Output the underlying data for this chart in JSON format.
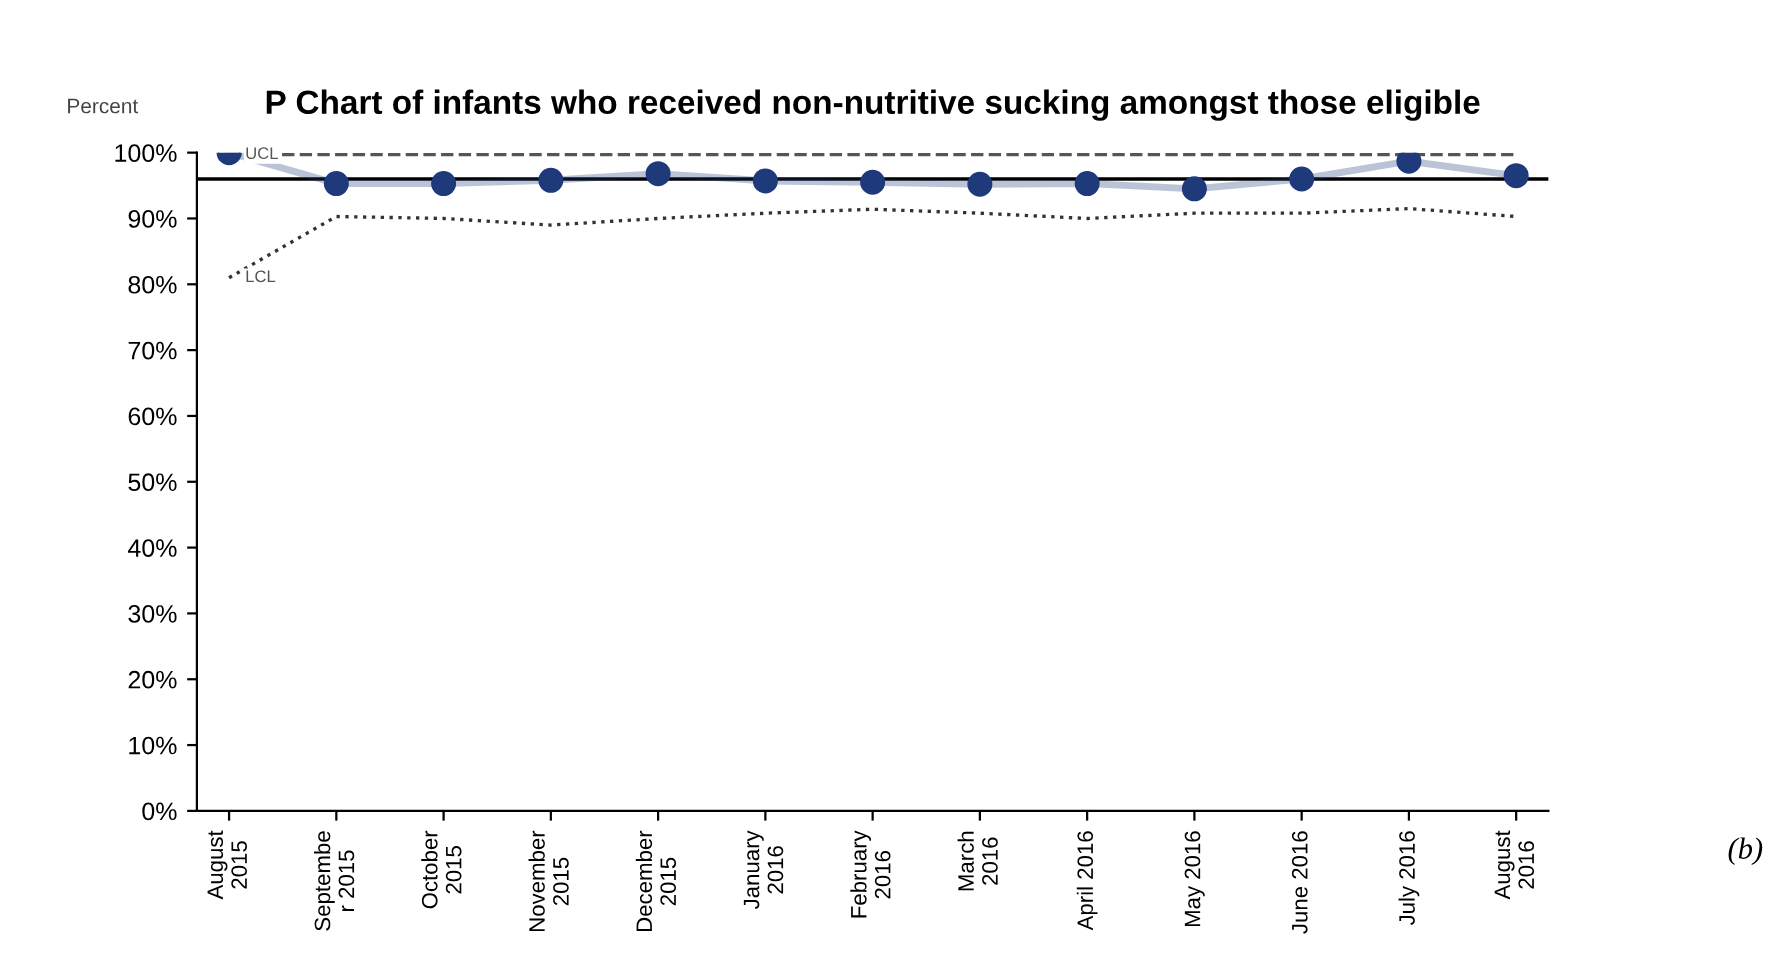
{
  "chart_data": {
    "type": "line",
    "title": "P Chart of infants who received non-nutritive sucking amongst those eligible",
    "ylabel": "Percent",
    "categories": [
      "August\n2015",
      "Septembe\nr 2015",
      "October\n2015",
      "November\n2015",
      "December\n2015",
      "January\n2016",
      "February\n2016",
      "March\n2016",
      "April 2016",
      "May 2016",
      "June 2016",
      "July 2016",
      "August\n2016"
    ],
    "series": [
      {
        "color": "#1f3a7a",
        "marker": "circle",
        "line_style": "solid",
        "values": [
          100,
          95.3,
          95.3,
          95.8,
          96.8,
          95.7,
          95.5,
          95.2,
          95.3,
          94.5,
          96.0,
          98.7,
          96.5
        ]
      },
      {
        "name": "UCL",
        "color": "#555555",
        "marker": "none",
        "line_style": "dashed",
        "values": [
          99.7,
          99.7,
          99.7,
          99.7,
          99.7,
          99.7,
          99.7,
          99.7,
          99.7,
          99.7,
          99.7,
          99.7,
          99.7
        ]
      },
      {
        "name": "LCL",
        "color": "#333333",
        "marker": "none",
        "line_style": "dotted",
        "values": [
          81,
          90.3,
          90,
          89,
          90,
          90.8,
          91.4,
          90.8,
          90,
          90.8,
          90.8,
          91.5,
          90.3
        ]
      }
    ],
    "ref_lines": [
      {
        "axis": "y",
        "value": 96,
        "color": "#000000",
        "line_style": "solid"
      }
    ],
    "ylim": [
      0,
      100
    ],
    "yticks": [
      {
        "value": 0,
        "label": "0%"
      },
      {
        "value": 10,
        "label": "10%"
      },
      {
        "value": 20,
        "label": "20%"
      },
      {
        "value": 30,
        "label": "30%"
      },
      {
        "value": 40,
        "label": "40%"
      },
      {
        "value": 50,
        "label": "50%"
      },
      {
        "value": 60,
        "label": "60%"
      },
      {
        "value": 70,
        "label": "70%"
      },
      {
        "value": 80,
        "label": "80%"
      },
      {
        "value": 90,
        "label": "90%"
      },
      {
        "value": 100,
        "label": "100%"
      }
    ],
    "grid": false,
    "legend": false,
    "annotations": [
      "(b)"
    ]
  }
}
